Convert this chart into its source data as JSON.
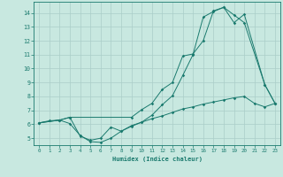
{
  "bg_color": "#c8e8e0",
  "line_color": "#1a7a6e",
  "grid_color": "#aacec8",
  "xlabel": "Humidex (Indice chaleur)",
  "xlim": [
    -0.5,
    23.5
  ],
  "ylim": [
    4.5,
    14.8
  ],
  "yticks": [
    5,
    6,
    7,
    8,
    9,
    10,
    11,
    12,
    13,
    14
  ],
  "xticks": [
    0,
    1,
    2,
    3,
    4,
    5,
    6,
    7,
    8,
    9,
    10,
    11,
    12,
    13,
    14,
    15,
    16,
    17,
    18,
    19,
    20,
    21,
    22,
    23
  ],
  "curve1_x": [
    0,
    1,
    2,
    3,
    4,
    5,
    6,
    7,
    8,
    9,
    10,
    11,
    12,
    13,
    14,
    15,
    16,
    17,
    18,
    19,
    20,
    21,
    22,
    23
  ],
  "curve1_y": [
    6.1,
    6.25,
    6.3,
    6.05,
    5.2,
    4.75,
    4.7,
    5.0,
    5.5,
    5.9,
    6.15,
    6.4,
    6.6,
    6.85,
    7.1,
    7.25,
    7.45,
    7.6,
    7.75,
    7.9,
    8.0,
    7.5,
    7.25,
    7.5
  ],
  "curve2_x": [
    0,
    2,
    3,
    4,
    5,
    6,
    7,
    8,
    9,
    10,
    11,
    12,
    13,
    14,
    15,
    16,
    17,
    18,
    19,
    20,
    22,
    23
  ],
  "curve2_y": [
    6.1,
    6.3,
    6.5,
    5.15,
    4.85,
    5.0,
    5.8,
    5.5,
    5.85,
    6.15,
    6.65,
    7.4,
    8.05,
    9.5,
    11.0,
    13.7,
    14.1,
    14.4,
    13.85,
    13.3,
    8.85,
    7.5
  ],
  "curve3_x": [
    0,
    2,
    3,
    9,
    10,
    11,
    12,
    13,
    14,
    15,
    16,
    17,
    18,
    19,
    20,
    22,
    23
  ],
  "curve3_y": [
    6.1,
    6.3,
    6.5,
    6.5,
    7.05,
    7.5,
    8.5,
    9.0,
    10.9,
    11.05,
    12.0,
    14.15,
    14.4,
    13.3,
    13.9,
    8.85,
    7.5
  ]
}
